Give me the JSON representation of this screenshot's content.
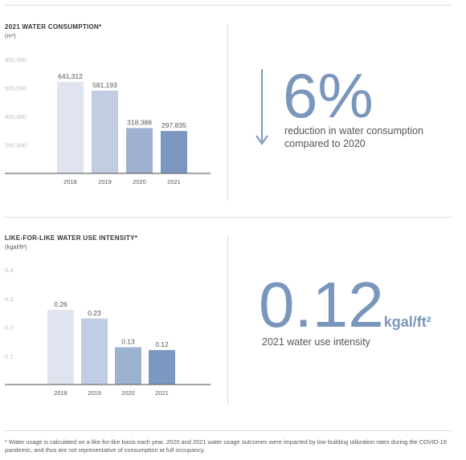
{
  "chart_data": [
    {
      "type": "bar",
      "title": "2021 WATER CONSUMPTION*",
      "unit": "(m³)",
      "categories": [
        "2018",
        "2019",
        "2020",
        "2021"
      ],
      "values": [
        641312,
        581193,
        318388,
        297835
      ],
      "value_labels": [
        "641,312",
        "581,193",
        "318,388",
        "297,835"
      ],
      "ylim": [
        0,
        800000
      ],
      "yticks": [
        200000,
        400000,
        600000,
        800000
      ],
      "ytick_labels": [
        "200,000",
        "400,000",
        "600,000",
        "800,000"
      ],
      "colors": [
        "#dfe4ee",
        "#c1cde3",
        "#9db1d0",
        "#7c98c0"
      ]
    },
    {
      "type": "bar",
      "title": "LIKE-FOR-LIKE WATER USE INTENSITY*",
      "unit": "(kgal/ft²)",
      "categories": [
        "2018",
        "2019",
        "2020",
        "2021"
      ],
      "values": [
        0.26,
        0.23,
        0.13,
        0.12
      ],
      "value_labels": [
        "0.26",
        "0.23",
        "0.13",
        "0.12"
      ],
      "ylim": [
        0,
        0.4
      ],
      "yticks": [
        0.1,
        0.2,
        0.3,
        0.4
      ],
      "ytick_labels": [
        "0.1",
        "0.2",
        "0.3",
        "0.4"
      ],
      "colors": [
        "#dfe4ee",
        "#c1cde3",
        "#9db1d0",
        "#7c98c0"
      ]
    }
  ],
  "highlight1": {
    "value": "6%",
    "description_line1": "reduction in water consumption",
    "description_line2": "compared to 2020",
    "arrow_icon": "arrow-down-icon"
  },
  "highlight2": {
    "value": "0.12",
    "suffix": "kgal/ft²",
    "description": "2021 water use intensity"
  },
  "footnote": "* Water usage is calculated on a like-for-like basis each year. 2020 and 2021 water usage outcomes were impacted by low building utilization rates during the COVID-19 pandemic, and thus are not representative of consumption at full occupancy.",
  "accent_color": "#7a96bd"
}
